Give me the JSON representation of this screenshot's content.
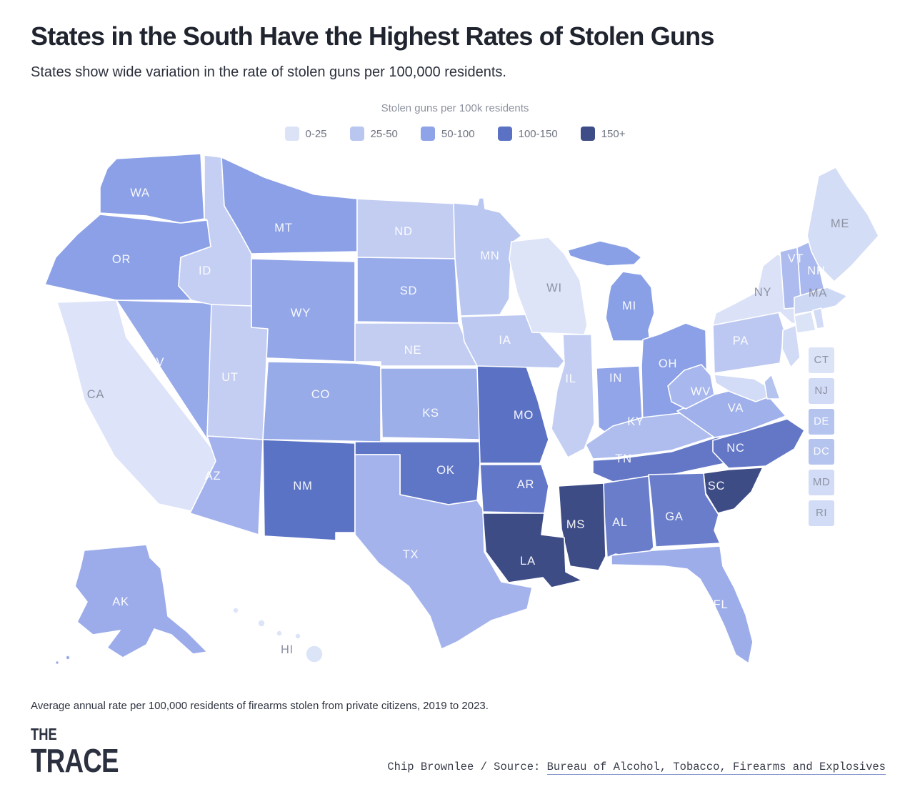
{
  "header": {
    "title": "States in the South Have the Highest Rates of Stolen Guns",
    "subtitle": "States show wide variation in the rate of stolen guns per 100,000 residents."
  },
  "legend": {
    "title": "Stolen guns per 100k residents",
    "buckets": [
      {
        "label": "0-25",
        "color": "#dce3f7"
      },
      {
        "label": "25-50",
        "color": "#b9c6f0"
      },
      {
        "label": "50-100",
        "color": "#8fa3e8"
      },
      {
        "label": "100-150",
        "color": "#5b72c4"
      },
      {
        "label": "150+",
        "color": "#3e4d87"
      }
    ]
  },
  "chart_data": {
    "type": "heatmap",
    "subtype": "us-choropleth-map",
    "title": "States in the South Have the Highest Rates of Stolen Guns",
    "subtitle": "States show wide variation in the rate of stolen guns per 100,000 residents.",
    "legend_title": "Stolen guns per 100k residents",
    "unit": "stolen guns per 100k residents",
    "buckets": [
      "0-25",
      "25-50",
      "50-100",
      "100-150",
      "150+"
    ],
    "note": "Average annual rate per 100,000 residents of firearms stolen from private citizens, 2019 to 2023.",
    "states": [
      {
        "abbr": "WA",
        "bucket": "50-100",
        "fill": "#8ba0e6",
        "label": [
          196,
          269
        ],
        "label_color": "light"
      },
      {
        "abbr": "OR",
        "bucket": "50-100",
        "fill": "#8ba0e6",
        "label": [
          170,
          362
        ],
        "label_color": "light"
      },
      {
        "abbr": "CA",
        "bucket": "0-25",
        "fill": "#dde3f8",
        "label": [
          134,
          551
        ],
        "label_color": "dark"
      },
      {
        "abbr": "NV",
        "bucket": "50-100",
        "fill": "#96a9e9",
        "label": [
          218,
          506
        ],
        "label_color": "light"
      },
      {
        "abbr": "ID",
        "bucket": "25-50",
        "fill": "#c5cff3",
        "label": [
          287,
          378
        ],
        "label_color": "light"
      },
      {
        "abbr": "MT",
        "bucket": "50-100",
        "fill": "#8ba0e6",
        "label": [
          397,
          318
        ],
        "label_color": "light"
      },
      {
        "abbr": "WY",
        "bucket": "50-100",
        "fill": "#92a6e8",
        "label": [
          421,
          437
        ],
        "label_color": "light"
      },
      {
        "abbr": "UT",
        "bucket": "25-50",
        "fill": "#c4cef2",
        "label": [
          322,
          527
        ],
        "label_color": "light"
      },
      {
        "abbr": "CO",
        "bucket": "50-100",
        "fill": "#98abe9",
        "label": [
          449,
          551
        ],
        "label_color": "light"
      },
      {
        "abbr": "AZ",
        "bucket": "50-100",
        "fill": "#a3b2ec",
        "label": [
          298,
          665
        ],
        "label_color": "light"
      },
      {
        "abbr": "NM",
        "bucket": "100-150",
        "fill": "#5b73c5",
        "label": [
          424,
          679
        ],
        "label_color": "light"
      },
      {
        "abbr": "ND",
        "bucket": "25-50",
        "fill": "#c3cdf2",
        "label": [
          565,
          323
        ],
        "label_color": "light"
      },
      {
        "abbr": "SD",
        "bucket": "50-100",
        "fill": "#97aae9",
        "label": [
          572,
          406
        ],
        "label_color": "light"
      },
      {
        "abbr": "NE",
        "bucket": "25-50",
        "fill": "#c3cdf2",
        "label": [
          578,
          489
        ],
        "label_color": "light"
      },
      {
        "abbr": "KS",
        "bucket": "50-100",
        "fill": "#9dafe9",
        "label": [
          603,
          577
        ],
        "label_color": "light"
      },
      {
        "abbr": "OK",
        "bucket": "100-150",
        "fill": "#5f76c6",
        "label": [
          624,
          657
        ],
        "label_color": "light"
      },
      {
        "abbr": "TX",
        "bucket": "50-100",
        "fill": "#a4b3ec",
        "label": [
          575,
          775
        ],
        "label_color": "light"
      },
      {
        "abbr": "MN",
        "bucket": "25-50",
        "fill": "#bac7f0",
        "label": [
          686,
          357
        ],
        "label_color": "light"
      },
      {
        "abbr": "IA",
        "bucket": "25-50",
        "fill": "#bdc9f1",
        "label": [
          707,
          475
        ],
        "label_color": "light"
      },
      {
        "abbr": "MO",
        "bucket": "100-150",
        "fill": "#5b72c4",
        "label": [
          733,
          580
        ],
        "label_color": "light"
      },
      {
        "abbr": "AR",
        "bucket": "100-150",
        "fill": "#6377c8",
        "label": [
          736,
          677
        ],
        "label_color": "light"
      },
      {
        "abbr": "LA",
        "bucket": "150+",
        "fill": "#3e4c86",
        "label": [
          739,
          784
        ],
        "label_color": "light"
      },
      {
        "abbr": "WI",
        "bucket": "0-25",
        "fill": "#dde4f8",
        "label": [
          776,
          402
        ],
        "label_color": "dark"
      },
      {
        "abbr": "IL",
        "bucket": "25-50",
        "fill": "#c3cef2",
        "label": [
          799,
          529
        ],
        "label_color": "light"
      },
      {
        "abbr": "IN",
        "bucket": "50-100",
        "fill": "#92a5e8",
        "label": [
          862,
          528
        ],
        "label_color": "light"
      },
      {
        "abbr": "MI",
        "bucket": "50-100",
        "fill": "#8aa0e6",
        "label": [
          881,
          427
        ],
        "label_color": "light"
      },
      {
        "abbr": "OH",
        "bucket": "50-100",
        "fill": "#8ba0e6",
        "label": [
          935,
          508
        ],
        "label_color": "light"
      },
      {
        "abbr": "KY",
        "bucket": "25-50",
        "fill": "#aebdee",
        "label": [
          890,
          589
        ],
        "label_color": "light"
      },
      {
        "abbr": "TN",
        "bucket": "100-150",
        "fill": "#6377c6",
        "label": [
          873,
          641
        ],
        "label_color": "light"
      },
      {
        "abbr": "MS",
        "bucket": "150+",
        "fill": "#3e4c86",
        "label": [
          806,
          733
        ],
        "label_color": "light"
      },
      {
        "abbr": "AL",
        "bucket": "100-150",
        "fill": "#6a7dca",
        "label": [
          868,
          730
        ],
        "label_color": "light"
      },
      {
        "abbr": "GA",
        "bucket": "100-150",
        "fill": "#6a7dca",
        "label": [
          944,
          722
        ],
        "label_color": "light"
      },
      {
        "abbr": "FL",
        "bucket": "50-100",
        "fill": "#9cadea",
        "label": [
          1009,
          845
        ],
        "label_color": "light"
      },
      {
        "abbr": "SC",
        "bucket": "150+",
        "fill": "#3e4c86",
        "label": [
          1003,
          679
        ],
        "label_color": "light"
      },
      {
        "abbr": "NC",
        "bucket": "100-150",
        "fill": "#6377c6",
        "label": [
          1030,
          626
        ],
        "label_color": "light"
      },
      {
        "abbr": "VA",
        "bucket": "50-100",
        "fill": "#9fb0ea",
        "label": [
          1030,
          570
        ],
        "label_color": "light"
      },
      {
        "abbr": "WV",
        "bucket": "25-50",
        "fill": "#a8b7ed",
        "label": [
          981,
          547
        ],
        "label_color": "light"
      },
      {
        "abbr": "PA",
        "bucket": "25-50",
        "fill": "#bcc8f1",
        "label": [
          1037,
          476
        ],
        "label_color": "light"
      },
      {
        "abbr": "NY",
        "bucket": "0-25",
        "fill": "#dbe2f8",
        "label": [
          1068,
          408
        ],
        "label_color": "dark"
      },
      {
        "abbr": "VT",
        "bucket": "25-50",
        "fill": "#adbbee",
        "label": [
          1114,
          361
        ],
        "label_color": "light"
      },
      {
        "abbr": "NH",
        "bucket": "25-50",
        "fill": "#a9b8ee",
        "label": [
          1143,
          378
        ],
        "label_color": "light"
      },
      {
        "abbr": "ME",
        "bucket": "0-25",
        "fill": "#d4ddf6",
        "label": [
          1176,
          312
        ],
        "label_color": "dark"
      },
      {
        "abbr": "MA",
        "bucket": "0-25",
        "fill": "#cdd8f5",
        "label": [
          1145,
          409
        ],
        "label_color": "dark"
      },
      {
        "abbr": "CT",
        "bucket": "0-25",
        "fill": "#dbe3f7",
        "label": null,
        "label_color": "dark"
      },
      {
        "abbr": "RI",
        "bucket": "0-25",
        "fill": "#d3dcf6",
        "label": null,
        "label_color": "dark"
      },
      {
        "abbr": "NJ",
        "bucket": "0-25",
        "fill": "#d2dbf6",
        "label": null,
        "label_color": "dark"
      },
      {
        "abbr": "DE",
        "bucket": "25-50",
        "fill": "#b5c3ef",
        "label": null,
        "label_color": "light"
      },
      {
        "abbr": "MD",
        "bucket": "0-25",
        "fill": "#d3dcf6",
        "label": null,
        "label_color": "dark"
      },
      {
        "abbr": "DC",
        "bucket": "25-50",
        "fill": "#b5c3ef",
        "label": null,
        "label_color": "light"
      },
      {
        "abbr": "AK",
        "bucket": "50-100",
        "fill": "#9cacea",
        "label": [
          169,
          841
        ],
        "label_color": "light"
      },
      {
        "abbr": "HI",
        "bucket": "0-25",
        "fill": "#dce4f8",
        "label": [
          402,
          908
        ],
        "label_color": "dark"
      }
    ],
    "inset_states": [
      "CT",
      "NJ",
      "DE",
      "DC",
      "MD",
      "RI"
    ]
  },
  "footer": {
    "note": "Average annual rate per 100,000 residents of firearms stolen from private citizens, 2019 to 2023.",
    "logo_line1": "THE",
    "logo_line2": "TRACE",
    "credit_byline": "Chip Brownlee / Source: ",
    "credit_source": "Bureau of Alcohol, Tobacco, Firearms and Explosives"
  }
}
